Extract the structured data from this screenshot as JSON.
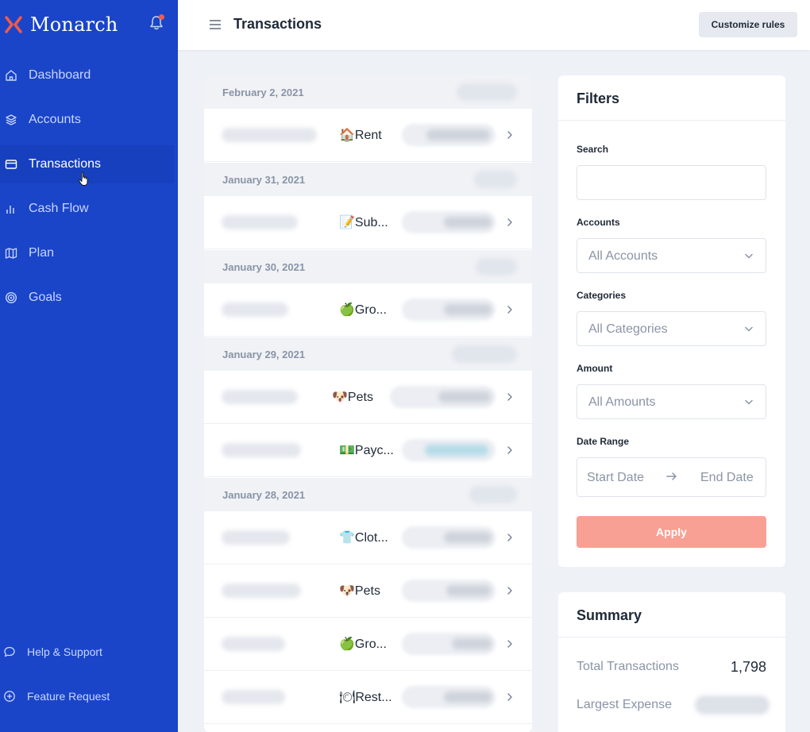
{
  "brand": {
    "name": "Monarch",
    "accent": "#f25a4a",
    "sidebar_color": "#1a45c8"
  },
  "nav": {
    "items": [
      {
        "label": "Dashboard",
        "icon": "home-icon"
      },
      {
        "label": "Accounts",
        "icon": "layers-icon"
      },
      {
        "label": "Transactions",
        "icon": "credit-card-icon",
        "active": true
      },
      {
        "label": "Cash Flow",
        "icon": "bar-chart-icon"
      },
      {
        "label": "Plan",
        "icon": "map-icon"
      },
      {
        "label": "Goals",
        "icon": "target-icon"
      }
    ],
    "footer": [
      {
        "label": "Help & Support",
        "icon": "chat-bubble-icon"
      },
      {
        "label": "Feature Request",
        "icon": "plus-circle-icon"
      }
    ]
  },
  "header": {
    "title": "Transactions",
    "customize_label": "Customize rules"
  },
  "transactions": {
    "groups": [
      {
        "date": "February 2, 2021",
        "rows": [
          {
            "category": "🏠Rent"
          }
        ]
      },
      {
        "date": "January 31, 2021",
        "rows": [
          {
            "category": "📝Sub..."
          }
        ]
      },
      {
        "date": "January 30, 2021",
        "rows": [
          {
            "category": "🍏Gro..."
          }
        ]
      },
      {
        "date": "January 29, 2021",
        "rows": [
          {
            "category": "🐶Pets"
          },
          {
            "category": "💵Payc..."
          }
        ]
      },
      {
        "date": "January 28, 2021",
        "rows": [
          {
            "category": "👕Clot..."
          },
          {
            "category": "🐶Pets"
          },
          {
            "category": "🍏Gro..."
          },
          {
            "category": "🍽Rest..."
          }
        ]
      }
    ]
  },
  "filters": {
    "title": "Filters",
    "search_label": "Search",
    "search_value": "",
    "accounts_label": "Accounts",
    "accounts_value": "All Accounts",
    "categories_label": "Categories",
    "categories_value": "All Categories",
    "amount_label": "Amount",
    "amount_value": "All Amounts",
    "date_range_label": "Date Range",
    "start_placeholder": "Start Date",
    "end_placeholder": "End Date",
    "apply_label": "Apply"
  },
  "summary": {
    "title": "Summary",
    "total_label": "Total Transactions",
    "total_value": "1,798",
    "largest_label": "Largest Expense"
  }
}
